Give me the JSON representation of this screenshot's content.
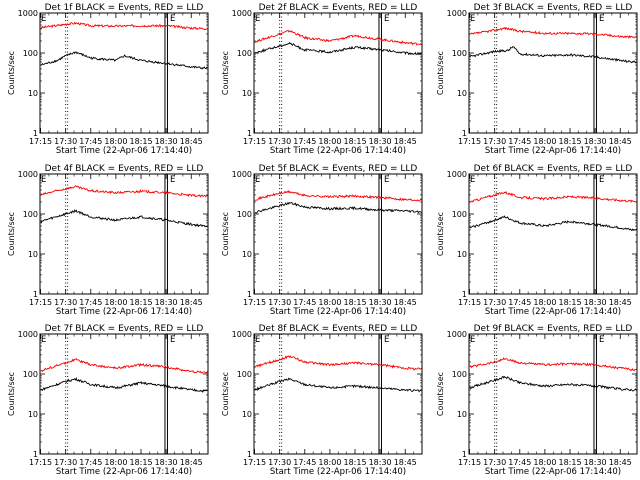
{
  "chart_data": [
    {
      "type": "line",
      "title": "Det 1f BLACK = Events, RED = LLD",
      "xlabel": "Start Time (22-Apr-06 17:14:40)",
      "ylabel": "Counts/sec",
      "yscale": "log",
      "ylim": [
        1,
        1000
      ],
      "x_ticks": [
        "17:15",
        "17:30",
        "17:45",
        "18:00",
        "18:15",
        "18:30",
        "18:45"
      ],
      "y_ticks": [
        "1",
        "10",
        "100",
        "1000"
      ],
      "markers": [
        "E",
        "E"
      ],
      "series": [
        {
          "color": "#ff0000",
          "x": [
            "17:15",
            "17:30",
            "17:36",
            "17:45",
            "18:00",
            "18:15",
            "18:30",
            "18:45",
            "18:52"
          ],
          "values": [
            430,
            520,
            560,
            480,
            470,
            480,
            480,
            420,
            410
          ]
        },
        {
          "color": "#000000",
          "x": [
            "17:15",
            "17:25",
            "17:30",
            "17:36",
            "17:45",
            "18:00",
            "18:05",
            "18:15",
            "18:30",
            "18:45",
            "18:52"
          ],
          "values": [
            50,
            65,
            85,
            105,
            75,
            65,
            85,
            65,
            55,
            45,
            42
          ]
        }
      ]
    },
    {
      "type": "line",
      "title": "Det 2f BLACK = Events, RED = LLD",
      "xlabel": "Start Time (22-Apr-06 17:14:40)",
      "ylabel": "Counts/sec",
      "yscale": "log",
      "ylim": [
        1,
        1000
      ],
      "x_ticks": [
        "17:15",
        "17:30",
        "17:45",
        "18:00",
        "18:15",
        "18:30",
        "18:45"
      ],
      "y_ticks": [
        "1",
        "10",
        "100",
        "1000"
      ],
      "markers": [
        "E",
        "E"
      ],
      "series": [
        {
          "color": "#ff0000",
          "x": [
            "17:15",
            "17:30",
            "17:36",
            "17:45",
            "18:00",
            "18:15",
            "18:30",
            "18:45",
            "18:52"
          ],
          "values": [
            190,
            300,
            360,
            240,
            200,
            270,
            220,
            180,
            170
          ]
        },
        {
          "color": "#000000",
          "x": [
            "17:15",
            "17:30",
            "17:36",
            "17:45",
            "18:00",
            "18:15",
            "18:30",
            "18:45",
            "18:52"
          ],
          "values": [
            100,
            150,
            175,
            120,
            105,
            140,
            120,
            100,
            95
          ]
        }
      ]
    },
    {
      "type": "line",
      "title": "Det 3f BLACK = Events, RED = LLD",
      "xlabel": "Start Time (22-Apr-06 17:14:40)",
      "ylabel": "Counts/sec",
      "yscale": "log",
      "ylim": [
        1,
        1000
      ],
      "x_ticks": [
        "17:15",
        "17:30",
        "17:45",
        "18:00",
        "18:15",
        "18:30",
        "18:45"
      ],
      "y_ticks": [
        "1",
        "10",
        "100",
        "1000"
      ],
      "markers": [
        "E",
        "E"
      ],
      "series": [
        {
          "color": "#ff0000",
          "x": [
            "17:15",
            "17:30",
            "17:36",
            "17:45",
            "18:00",
            "18:15",
            "18:30",
            "18:45",
            "18:52"
          ],
          "values": [
            290,
            370,
            420,
            350,
            310,
            310,
            300,
            260,
            250
          ]
        },
        {
          "color": "#000000",
          "x": [
            "17:15",
            "17:30",
            "17:38",
            "17:41",
            "17:45",
            "18:00",
            "18:15",
            "18:30",
            "18:45",
            "18:52"
          ],
          "values": [
            80,
            110,
            115,
            145,
            95,
            85,
            90,
            80,
            65,
            60
          ]
        }
      ]
    },
    {
      "type": "line",
      "title": "Det 4f BLACK = Events, RED = LLD",
      "xlabel": "Start Time (22-Apr-06 17:14:40)",
      "ylabel": "Counts/sec",
      "yscale": "log",
      "ylim": [
        1,
        1000
      ],
      "x_ticks": [
        "17:15",
        "17:30",
        "17:45",
        "18:00",
        "18:15",
        "18:30",
        "18:45"
      ],
      "y_ticks": [
        "1",
        "10",
        "100",
        "1000"
      ],
      "markers": [
        "E",
        "E"
      ],
      "series": [
        {
          "color": "#ff0000",
          "x": [
            "17:15",
            "17:30",
            "17:36",
            "17:45",
            "18:00",
            "18:15",
            "18:30",
            "18:45",
            "18:52"
          ],
          "values": [
            300,
            430,
            480,
            380,
            340,
            370,
            340,
            290,
            280
          ]
        },
        {
          "color": "#000000",
          "x": [
            "17:15",
            "17:30",
            "17:36",
            "17:45",
            "18:00",
            "18:15",
            "18:30",
            "18:45",
            "18:52"
          ],
          "values": [
            65,
            100,
            120,
            85,
            70,
            85,
            70,
            55,
            50
          ]
        }
      ]
    },
    {
      "type": "line",
      "title": "Det 5f BLACK = Events, RED = LLD",
      "xlabel": "Start Time (22-Apr-06 17:14:40)",
      "ylabel": "Counts/sec",
      "yscale": "log",
      "ylim": [
        1,
        1000
      ],
      "x_ticks": [
        "17:15",
        "17:30",
        "17:45",
        "18:00",
        "18:15",
        "18:30",
        "18:45"
      ],
      "y_ticks": [
        "1",
        "10",
        "100",
        "1000"
      ],
      "markers": [
        "E",
        "E"
      ],
      "series": [
        {
          "color": "#ff0000",
          "x": [
            "17:15",
            "17:30",
            "17:36",
            "17:45",
            "18:00",
            "18:15",
            "18:30",
            "18:45",
            "18:52"
          ],
          "values": [
            230,
            330,
            360,
            290,
            270,
            280,
            260,
            230,
            225
          ]
        },
        {
          "color": "#000000",
          "x": [
            "17:15",
            "17:30",
            "17:36",
            "17:45",
            "18:00",
            "18:15",
            "18:30",
            "18:45",
            "18:52"
          ],
          "values": [
            110,
            160,
            190,
            150,
            135,
            140,
            125,
            120,
            115
          ]
        }
      ]
    },
    {
      "type": "line",
      "title": "Det 6f BLACK = Events, RED = LLD",
      "xlabel": "Start Time (22-Apr-06 17:14:40)",
      "ylabel": "Counts/sec",
      "yscale": "log",
      "ylim": [
        1,
        1000
      ],
      "x_ticks": [
        "17:15",
        "17:30",
        "17:45",
        "18:00",
        "18:15",
        "18:30",
        "18:45"
      ],
      "y_ticks": [
        "1",
        "10",
        "100",
        "1000"
      ],
      "markers": [
        "E",
        "E"
      ],
      "series": [
        {
          "color": "#ff0000",
          "x": [
            "17:15",
            "17:30",
            "17:36",
            "17:45",
            "18:00",
            "18:15",
            "18:30",
            "18:45",
            "18:52"
          ],
          "values": [
            200,
            300,
            350,
            260,
            240,
            270,
            250,
            220,
            210
          ]
        },
        {
          "color": "#000000",
          "x": [
            "17:15",
            "17:30",
            "17:36",
            "17:45",
            "18:00",
            "18:15",
            "18:30",
            "18:45",
            "18:52"
          ],
          "values": [
            45,
            70,
            85,
            60,
            50,
            65,
            55,
            45,
            40
          ]
        }
      ]
    },
    {
      "type": "line",
      "title": "Det 7f BLACK = Events, RED = LLD",
      "xlabel": "Start Time (22-Apr-06 17:14:40)",
      "ylabel": "Counts/sec",
      "yscale": "log",
      "ylim": [
        1,
        1000
      ],
      "x_ticks": [
        "17:15",
        "17:30",
        "17:45",
        "18:00",
        "18:15",
        "18:30",
        "18:45"
      ],
      "y_ticks": [
        "1",
        "10",
        "100",
        "1000"
      ],
      "markers": [
        "E",
        "E"
      ],
      "series": [
        {
          "color": "#ff0000",
          "x": [
            "17:15",
            "17:30",
            "17:36",
            "17:45",
            "18:00",
            "18:15",
            "18:30",
            "18:45",
            "18:52"
          ],
          "values": [
            120,
            190,
            230,
            170,
            140,
            170,
            150,
            115,
            110
          ]
        },
        {
          "color": "#000000",
          "x": [
            "17:15",
            "17:30",
            "17:36",
            "17:45",
            "18:00",
            "18:15",
            "18:30",
            "18:45",
            "18:52"
          ],
          "values": [
            40,
            65,
            75,
            55,
            45,
            60,
            50,
            40,
            38
          ]
        }
      ]
    },
    {
      "type": "line",
      "title": "Det 8f BLACK = Events, RED = LLD",
      "xlabel": "Start Time (22-Apr-06 17:14:40)",
      "ylabel": "Counts/sec",
      "yscale": "log",
      "ylim": [
        1,
        1000
      ],
      "x_ticks": [
        "17:15",
        "17:30",
        "17:45",
        "18:00",
        "18:15",
        "18:30",
        "18:45"
      ],
      "y_ticks": [
        "1",
        "10",
        "100",
        "1000"
      ],
      "markers": [
        "E",
        "E"
      ],
      "series": [
        {
          "color": "#ff0000",
          "x": [
            "17:15",
            "17:30",
            "17:36",
            "17:45",
            "18:00",
            "18:15",
            "18:30",
            "18:45",
            "18:52"
          ],
          "values": [
            150,
            230,
            280,
            200,
            170,
            190,
            170,
            140,
            135
          ]
        },
        {
          "color": "#000000",
          "x": [
            "17:15",
            "17:30",
            "17:36",
            "17:45",
            "18:00",
            "18:15",
            "18:30",
            "18:45",
            "18:52"
          ],
          "values": [
            40,
            65,
            75,
            55,
            45,
            50,
            45,
            40,
            38
          ]
        }
      ]
    },
    {
      "type": "line",
      "title": "Det 9f BLACK = Events, RED = LLD",
      "xlabel": "Start Time (22-Apr-06 17:14:40)",
      "ylabel": "Counts/sec",
      "yscale": "log",
      "ylim": [
        1,
        1000
      ],
      "x_ticks": [
        "17:15",
        "17:30",
        "17:45",
        "18:00",
        "18:15",
        "18:30",
        "18:45"
      ],
      "y_ticks": [
        "1",
        "10",
        "100",
        "1000"
      ],
      "markers": [
        "E",
        "E"
      ],
      "series": [
        {
          "color": "#ff0000",
          "x": [
            "17:15",
            "17:30",
            "17:36",
            "17:45",
            "18:00",
            "18:15",
            "18:30",
            "18:45",
            "18:52"
          ],
          "values": [
            150,
            200,
            240,
            190,
            170,
            180,
            170,
            140,
            130
          ]
        },
        {
          "color": "#000000",
          "x": [
            "17:15",
            "17:30",
            "17:36",
            "17:45",
            "18:00",
            "18:15",
            "18:30",
            "18:45",
            "18:52"
          ],
          "values": [
            45,
            70,
            85,
            60,
            50,
            55,
            50,
            42,
            40
          ]
        }
      ]
    }
  ]
}
